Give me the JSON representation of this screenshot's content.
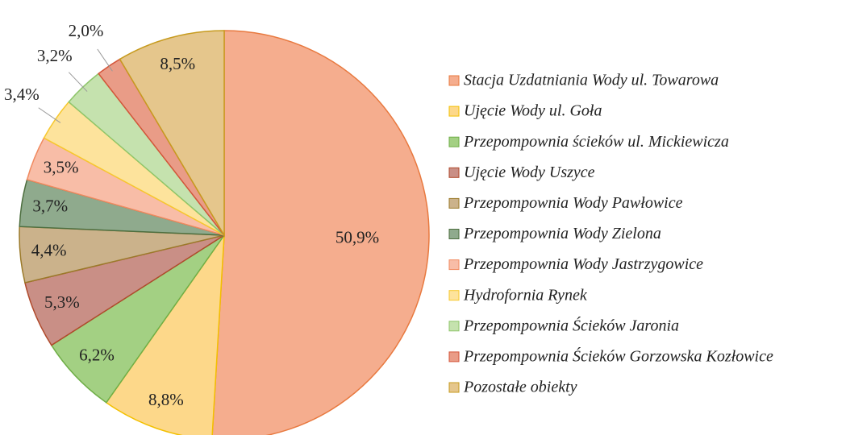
{
  "chart_data": {
    "type": "pie",
    "categories": [
      "Stacja Uzdatniania Wody ul. Towarowa",
      "Ujęcie Wody ul. Goła",
      "Przepompownia ścieków ul. Mickiewicza",
      "Ujęcie Wody Uszyce",
      "Przepompownia Wody Pawłowice",
      "Przepompownia Wody Zielona",
      "Przepompownia Wody Jastrzygowice",
      "Hydrofornia Rynek",
      "Przepompownia Ścieków Jaronia",
      "Przepompownia Ścieków Gorzowska Kozłowice",
      "Pozostałe obiekty"
    ],
    "values": [
      50.9,
      8.8,
      6.2,
      5.3,
      4.4,
      3.7,
      3.5,
      3.4,
      3.2,
      2.0,
      8.5
    ],
    "value_labels": [
      "50,9%",
      "8,8%",
      "6,2%",
      "5,3%",
      "4,4%",
      "3,7%",
      "3,5%",
      "3,4%",
      "3,2%",
      "2,0%",
      "8,5%"
    ],
    "colors": [
      "#f5ad8e",
      "#fdd88a",
      "#a3d083",
      "#c98f86",
      "#cbb28b",
      "#8faa8d",
      "#f8bda7",
      "#fde39c",
      "#c5e2ae",
      "#e99c87",
      "#e5c68c"
    ],
    "stroke_colors": [
      "#e8793f",
      "#f3c000",
      "#6fae47",
      "#b04a2c",
      "#9b7a2a",
      "#4d6e3f",
      "#f08a60",
      "#f7c82e",
      "#8ec56a",
      "#d4553a",
      "#c79b1f"
    ],
    "legend": "right"
  }
}
